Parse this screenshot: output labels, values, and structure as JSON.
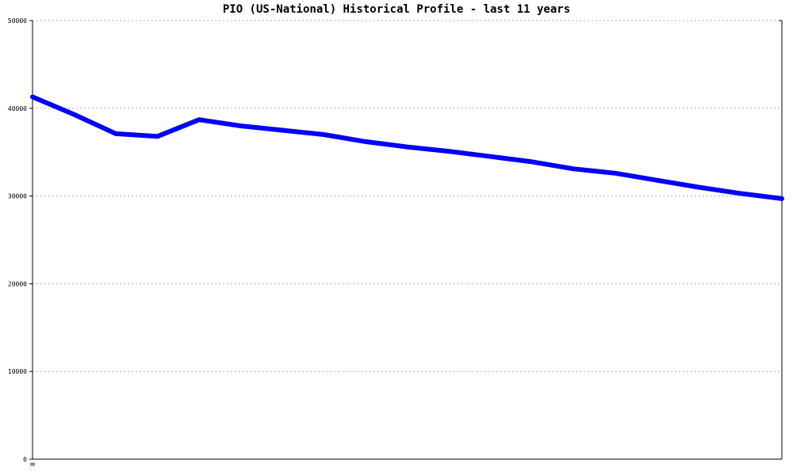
{
  "chart_data": {
    "type": "line",
    "title": "PIO (US-National) Historical Profile - last 11 years",
    "xlabel": "",
    "ylabel": "",
    "ylim": [
      0,
      50000
    ],
    "yticks": [
      "0",
      "10000",
      "20000",
      "30000",
      "40000",
      "50000"
    ],
    "xticks": [
      "0"
    ],
    "grid": true,
    "line_color": "#0000ff",
    "series": [
      {
        "values": [
          41300,
          39300,
          37100,
          36800,
          38700,
          38000,
          37500,
          37000,
          36200,
          35600,
          35100,
          34500,
          33900,
          33100,
          32600,
          31800,
          31000,
          30300,
          29700
        ]
      }
    ]
  }
}
